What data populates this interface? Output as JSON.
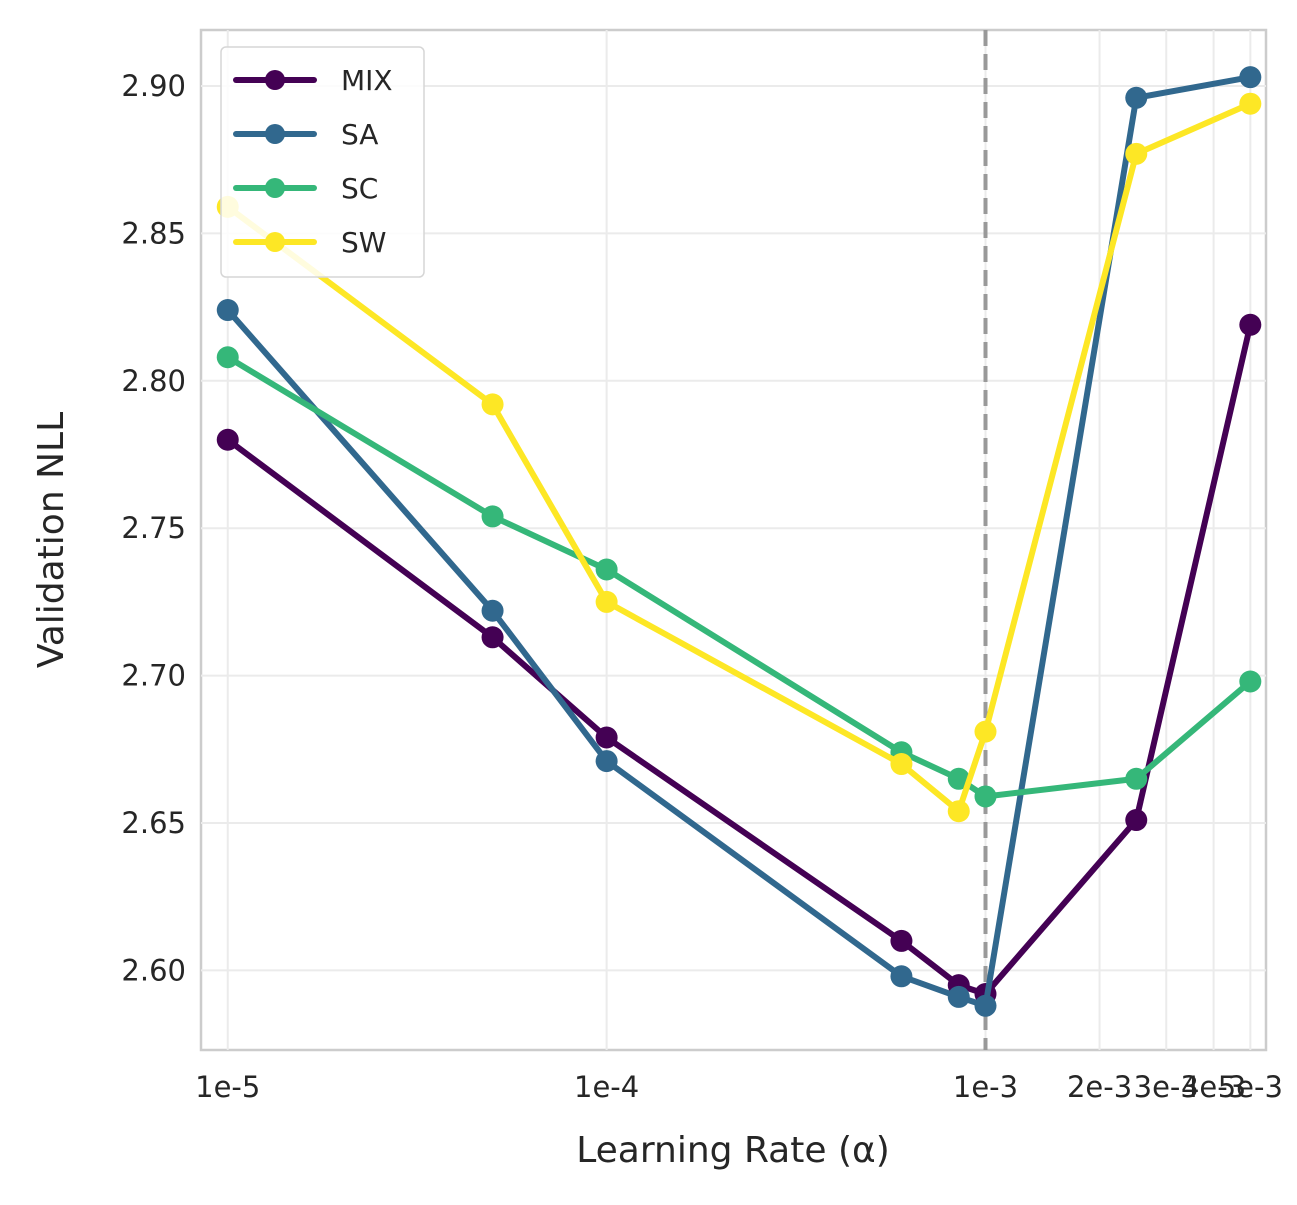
{
  "chart_data": {
    "type": "line",
    "title": "",
    "xlabel": "Learning Rate (α)",
    "ylabel": "Validation NLL",
    "x_scale": "log",
    "x_ticks": [
      {
        "value": 1e-05,
        "label": "1e-5"
      },
      {
        "value": 0.0001,
        "label": "1e-4"
      },
      {
        "value": 0.001,
        "label": "1e-3"
      },
      {
        "value": 0.002,
        "label": "2e-3"
      },
      {
        "value": 0.003,
        "label": "3e-3"
      },
      {
        "value": 0.004,
        "label": "4e-3"
      },
      {
        "value": 0.005,
        "label": "5e-3"
      }
    ],
    "y_ticks": [
      {
        "value": 2.6,
        "label": "2.60"
      },
      {
        "value": 2.65,
        "label": "2.65"
      },
      {
        "value": 2.7,
        "label": "2.70"
      },
      {
        "value": 2.75,
        "label": "2.75"
      },
      {
        "value": 2.8,
        "label": "2.80"
      },
      {
        "value": 2.85,
        "label": "2.85"
      },
      {
        "value": 2.9,
        "label": "2.90"
      }
    ],
    "xlim": [
      8.5e-06,
      0.0055
    ],
    "ylim": [
      2.573,
      2.919
    ],
    "grid": true,
    "legend_position": "top-left",
    "reference_line": {
      "x": 0.001,
      "style": "dashed",
      "color": "#999999"
    },
    "x": [
      1e-05,
      5e-05,
      0.0001,
      0.0006,
      0.00085,
      0.001,
      0.0025,
      0.005
    ],
    "series": [
      {
        "name": "MIX",
        "color": "#440154",
        "values": [
          2.78,
          2.713,
          2.679,
          2.61,
          2.595,
          2.592,
          2.651,
          2.819
        ]
      },
      {
        "name": "SA",
        "color": "#31688e",
        "values": [
          2.824,
          2.722,
          2.671,
          2.598,
          2.591,
          2.588,
          2.896,
          2.903
        ]
      },
      {
        "name": "SC",
        "color": "#35b779",
        "values": [
          2.808,
          2.754,
          2.736,
          2.674,
          2.665,
          2.659,
          2.665,
          2.698
        ]
      },
      {
        "name": "SW",
        "color": "#fde725",
        "values": [
          2.859,
          2.792,
          2.725,
          2.67,
          2.654,
          2.681,
          2.877,
          2.894
        ]
      }
    ]
  }
}
